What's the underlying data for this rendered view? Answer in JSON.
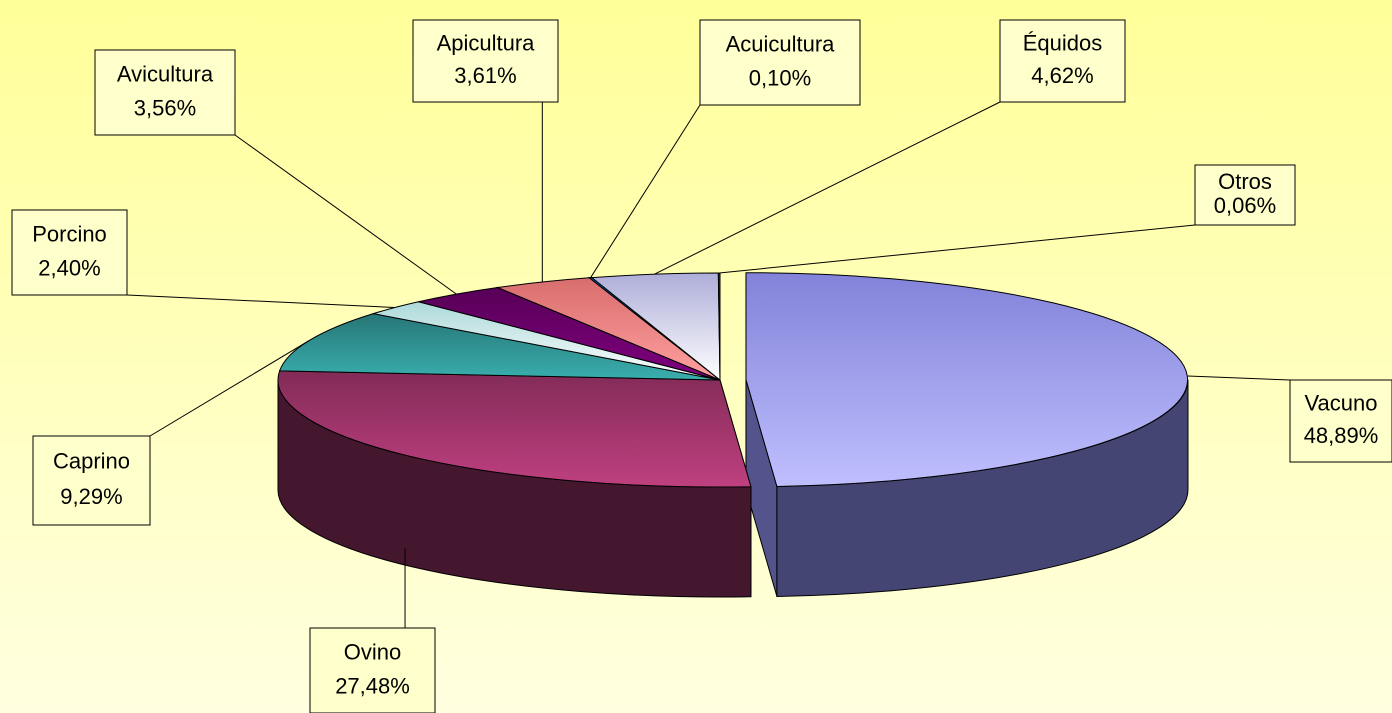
{
  "chart_data": {
    "type": "pie",
    "categories": [
      "Vacuno",
      "Ovino",
      "Caprino",
      "Porcino",
      "Avicultura",
      "Apicultura",
      "Acuicultura",
      "Équidos",
      "Otros"
    ],
    "values": [
      48.89,
      27.48,
      9.29,
      2.4,
      3.56,
      3.61,
      0.1,
      4.62,
      0.06
    ],
    "value_labels": [
      "48,89%",
      "27,48%",
      "9,29%",
      "2,40%",
      "3,56%",
      "3,61%",
      "0,10%",
      "4,62%",
      "0,06%"
    ],
    "colors": [
      "#9999ff",
      "#993366",
      "#2e8b8b",
      "#ccffff",
      "#660066",
      "#ff8080",
      "#0066cc",
      "#ccccff",
      "#333399"
    ]
  }
}
